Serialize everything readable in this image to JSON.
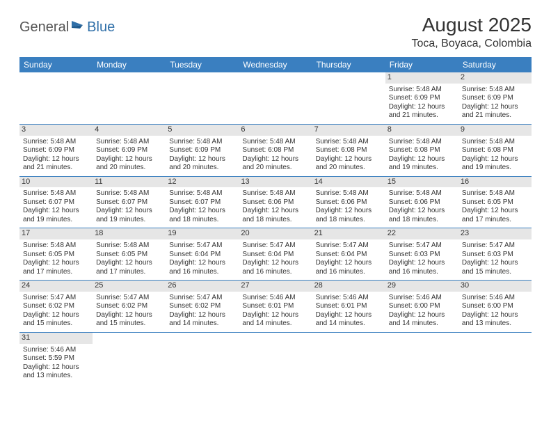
{
  "logo": {
    "text_general": "General",
    "text_blue": "Blue",
    "icon_color": "#2f6fa8"
  },
  "title": {
    "month": "August 2025",
    "location": "Toca, Boyaca, Colombia"
  },
  "colors": {
    "header_bg": "#3a7fc0",
    "header_text": "#ffffff",
    "daynum_bg": "#e6e6e6",
    "border": "#3a7fc0",
    "text": "#333333"
  },
  "day_names": [
    "Sunday",
    "Monday",
    "Tuesday",
    "Wednesday",
    "Thursday",
    "Friday",
    "Saturday"
  ],
  "weeks": [
    [
      {
        "empty": true
      },
      {
        "empty": true
      },
      {
        "empty": true
      },
      {
        "empty": true
      },
      {
        "empty": true
      },
      {
        "day": "1",
        "sunrise": "Sunrise: 5:48 AM",
        "sunset": "Sunset: 6:09 PM",
        "daylight1": "Daylight: 12 hours",
        "daylight2": "and 21 minutes."
      },
      {
        "day": "2",
        "sunrise": "Sunrise: 5:48 AM",
        "sunset": "Sunset: 6:09 PM",
        "daylight1": "Daylight: 12 hours",
        "daylight2": "and 21 minutes."
      }
    ],
    [
      {
        "day": "3",
        "sunrise": "Sunrise: 5:48 AM",
        "sunset": "Sunset: 6:09 PM",
        "daylight1": "Daylight: 12 hours",
        "daylight2": "and 21 minutes."
      },
      {
        "day": "4",
        "sunrise": "Sunrise: 5:48 AM",
        "sunset": "Sunset: 6:09 PM",
        "daylight1": "Daylight: 12 hours",
        "daylight2": "and 20 minutes."
      },
      {
        "day": "5",
        "sunrise": "Sunrise: 5:48 AM",
        "sunset": "Sunset: 6:09 PM",
        "daylight1": "Daylight: 12 hours",
        "daylight2": "and 20 minutes."
      },
      {
        "day": "6",
        "sunrise": "Sunrise: 5:48 AM",
        "sunset": "Sunset: 6:08 PM",
        "daylight1": "Daylight: 12 hours",
        "daylight2": "and 20 minutes."
      },
      {
        "day": "7",
        "sunrise": "Sunrise: 5:48 AM",
        "sunset": "Sunset: 6:08 PM",
        "daylight1": "Daylight: 12 hours",
        "daylight2": "and 20 minutes."
      },
      {
        "day": "8",
        "sunrise": "Sunrise: 5:48 AM",
        "sunset": "Sunset: 6:08 PM",
        "daylight1": "Daylight: 12 hours",
        "daylight2": "and 19 minutes."
      },
      {
        "day": "9",
        "sunrise": "Sunrise: 5:48 AM",
        "sunset": "Sunset: 6:08 PM",
        "daylight1": "Daylight: 12 hours",
        "daylight2": "and 19 minutes."
      }
    ],
    [
      {
        "day": "10",
        "sunrise": "Sunrise: 5:48 AM",
        "sunset": "Sunset: 6:07 PM",
        "daylight1": "Daylight: 12 hours",
        "daylight2": "and 19 minutes."
      },
      {
        "day": "11",
        "sunrise": "Sunrise: 5:48 AM",
        "sunset": "Sunset: 6:07 PM",
        "daylight1": "Daylight: 12 hours",
        "daylight2": "and 19 minutes."
      },
      {
        "day": "12",
        "sunrise": "Sunrise: 5:48 AM",
        "sunset": "Sunset: 6:07 PM",
        "daylight1": "Daylight: 12 hours",
        "daylight2": "and 18 minutes."
      },
      {
        "day": "13",
        "sunrise": "Sunrise: 5:48 AM",
        "sunset": "Sunset: 6:06 PM",
        "daylight1": "Daylight: 12 hours",
        "daylight2": "and 18 minutes."
      },
      {
        "day": "14",
        "sunrise": "Sunrise: 5:48 AM",
        "sunset": "Sunset: 6:06 PM",
        "daylight1": "Daylight: 12 hours",
        "daylight2": "and 18 minutes."
      },
      {
        "day": "15",
        "sunrise": "Sunrise: 5:48 AM",
        "sunset": "Sunset: 6:06 PM",
        "daylight1": "Daylight: 12 hours",
        "daylight2": "and 18 minutes."
      },
      {
        "day": "16",
        "sunrise": "Sunrise: 5:48 AM",
        "sunset": "Sunset: 6:05 PM",
        "daylight1": "Daylight: 12 hours",
        "daylight2": "and 17 minutes."
      }
    ],
    [
      {
        "day": "17",
        "sunrise": "Sunrise: 5:48 AM",
        "sunset": "Sunset: 6:05 PM",
        "daylight1": "Daylight: 12 hours",
        "daylight2": "and 17 minutes."
      },
      {
        "day": "18",
        "sunrise": "Sunrise: 5:48 AM",
        "sunset": "Sunset: 6:05 PM",
        "daylight1": "Daylight: 12 hours",
        "daylight2": "and 17 minutes."
      },
      {
        "day": "19",
        "sunrise": "Sunrise: 5:47 AM",
        "sunset": "Sunset: 6:04 PM",
        "daylight1": "Daylight: 12 hours",
        "daylight2": "and 16 minutes."
      },
      {
        "day": "20",
        "sunrise": "Sunrise: 5:47 AM",
        "sunset": "Sunset: 6:04 PM",
        "daylight1": "Daylight: 12 hours",
        "daylight2": "and 16 minutes."
      },
      {
        "day": "21",
        "sunrise": "Sunrise: 5:47 AM",
        "sunset": "Sunset: 6:04 PM",
        "daylight1": "Daylight: 12 hours",
        "daylight2": "and 16 minutes."
      },
      {
        "day": "22",
        "sunrise": "Sunrise: 5:47 AM",
        "sunset": "Sunset: 6:03 PM",
        "daylight1": "Daylight: 12 hours",
        "daylight2": "and 16 minutes."
      },
      {
        "day": "23",
        "sunrise": "Sunrise: 5:47 AM",
        "sunset": "Sunset: 6:03 PM",
        "daylight1": "Daylight: 12 hours",
        "daylight2": "and 15 minutes."
      }
    ],
    [
      {
        "day": "24",
        "sunrise": "Sunrise: 5:47 AM",
        "sunset": "Sunset: 6:02 PM",
        "daylight1": "Daylight: 12 hours",
        "daylight2": "and 15 minutes."
      },
      {
        "day": "25",
        "sunrise": "Sunrise: 5:47 AM",
        "sunset": "Sunset: 6:02 PM",
        "daylight1": "Daylight: 12 hours",
        "daylight2": "and 15 minutes."
      },
      {
        "day": "26",
        "sunrise": "Sunrise: 5:47 AM",
        "sunset": "Sunset: 6:02 PM",
        "daylight1": "Daylight: 12 hours",
        "daylight2": "and 14 minutes."
      },
      {
        "day": "27",
        "sunrise": "Sunrise: 5:46 AM",
        "sunset": "Sunset: 6:01 PM",
        "daylight1": "Daylight: 12 hours",
        "daylight2": "and 14 minutes."
      },
      {
        "day": "28",
        "sunrise": "Sunrise: 5:46 AM",
        "sunset": "Sunset: 6:01 PM",
        "daylight1": "Daylight: 12 hours",
        "daylight2": "and 14 minutes."
      },
      {
        "day": "29",
        "sunrise": "Sunrise: 5:46 AM",
        "sunset": "Sunset: 6:00 PM",
        "daylight1": "Daylight: 12 hours",
        "daylight2": "and 14 minutes."
      },
      {
        "day": "30",
        "sunrise": "Sunrise: 5:46 AM",
        "sunset": "Sunset: 6:00 PM",
        "daylight1": "Daylight: 12 hours",
        "daylight2": "and 13 minutes."
      }
    ],
    [
      {
        "day": "31",
        "sunrise": "Sunrise: 5:46 AM",
        "sunset": "Sunset: 5:59 PM",
        "daylight1": "Daylight: 12 hours",
        "daylight2": "and 13 minutes."
      },
      {
        "empty": true
      },
      {
        "empty": true
      },
      {
        "empty": true
      },
      {
        "empty": true
      },
      {
        "empty": true
      },
      {
        "empty": true
      }
    ]
  ]
}
